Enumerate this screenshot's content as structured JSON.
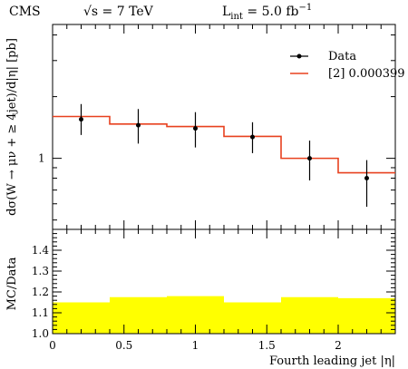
{
  "header": {
    "experiment": "CMS",
    "sqrt_s_label": "√s = 7 TeV",
    "lumi_label": "L",
    "lumi_sub": "int",
    "lumi_value": " = 5.0 fb",
    "lumi_sup": "−1"
  },
  "chart_data": [
    {
      "type": "line",
      "ylabel": "dσ(W → μν + ≥ 4jet)/d|η| [pb]",
      "y_scale": "log",
      "ylim": [
        0.45,
        4.5
      ],
      "y_tick_labels": [
        "1"
      ],
      "xlim": [
        0,
        2.4
      ],
      "x_bin_edges": [
        0,
        0.4,
        0.8,
        1.2,
        1.6,
        2.0,
        2.4
      ],
      "legend_position": "top-right",
      "series": [
        {
          "name": "Data",
          "style": "points-with-errorbars",
          "color": "#000000",
          "x": [
            0.2,
            0.6,
            1.0,
            1.4,
            1.8,
            2.2
          ],
          "y": [
            1.55,
            1.45,
            1.4,
            1.27,
            1.0,
            0.8
          ],
          "y_low": [
            1.3,
            1.18,
            1.13,
            1.06,
            0.78,
            0.58
          ],
          "y_high": [
            1.84,
            1.74,
            1.68,
            1.5,
            1.22,
            0.98
          ]
        },
        {
          "name": "[2] 0.000399",
          "style": "step",
          "color": "#e8411f",
          "values": [
            1.6,
            1.47,
            1.43,
            1.28,
            1.0,
            0.85
          ]
        }
      ]
    },
    {
      "type": "area",
      "ylabel": "MC/Data",
      "xlabel": "Fourth leading jet |η|",
      "xlim": [
        0,
        2.4
      ],
      "ylim": [
        1.0,
        1.5
      ],
      "y_ticks": [
        1.0,
        1.1,
        1.2,
        1.3,
        1.4
      ],
      "y_tick_labels": [
        "1.0",
        "1.1",
        "1.2",
        "1.3",
        "1.4"
      ],
      "x_ticks": [
        0,
        0.5,
        1,
        1.5,
        2
      ],
      "x_tick_labels": [
        "0",
        "0.5",
        "1",
        "1.5",
        "2"
      ],
      "fill_color": "#ffff00",
      "x_bin_edges": [
        0,
        0.4,
        0.8,
        1.2,
        1.6,
        2.0,
        2.4
      ],
      "values": [
        1.15,
        1.175,
        1.18,
        1.15,
        1.175,
        1.17
      ]
    }
  ]
}
